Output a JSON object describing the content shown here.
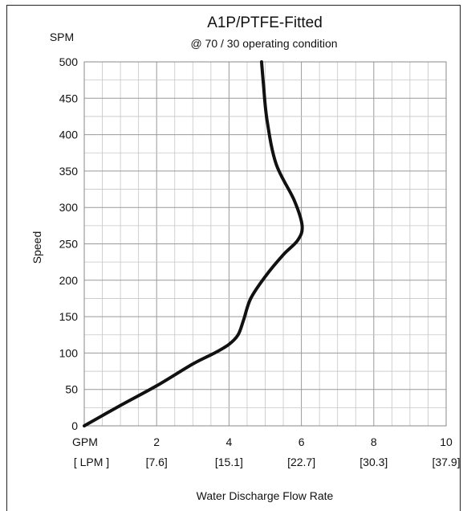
{
  "chart_data": {
    "type": "line",
    "title": "A1P/PTFE-Fitted",
    "subtitle": "@ 70 / 30 operating condition",
    "xlabel": "Water Discharge  Flow Rate",
    "ylabel": "Speed",
    "y_unit": "SPM",
    "x_unit": "GPM",
    "x_unit_secondary": "[ LPM ]",
    "xlim": [
      0,
      10
    ],
    "ylim": [
      0,
      500
    ],
    "x_ticks": [
      {
        "value": 2,
        "label": "2",
        "sub": "[7.6]"
      },
      {
        "value": 4,
        "label": "4",
        "sub": "[15.1]"
      },
      {
        "value": 6,
        "label": "6",
        "sub": "[22.7]"
      },
      {
        "value": 8,
        "label": "8",
        "sub": "[30.3]"
      },
      {
        "value": 10,
        "label": "10",
        "sub": "[37.9]"
      }
    ],
    "y_ticks": [
      0,
      50,
      100,
      150,
      200,
      250,
      300,
      350,
      400,
      450,
      500
    ],
    "grid": true,
    "series": [
      {
        "color": "#111111",
        "x": [
          0,
          1.0,
          2.0,
          3.0,
          3.6,
          4.0,
          4.25,
          4.4,
          4.6,
          5.0,
          5.5,
          5.9,
          6.02,
          5.8,
          5.3,
          5.05,
          4.95,
          4.9
        ],
        "y": [
          0,
          28,
          55,
          85,
          100,
          112,
          125,
          145,
          175,
          205,
          235,
          255,
          275,
          310,
          360,
          420,
          470,
          500
        ]
      }
    ]
  }
}
